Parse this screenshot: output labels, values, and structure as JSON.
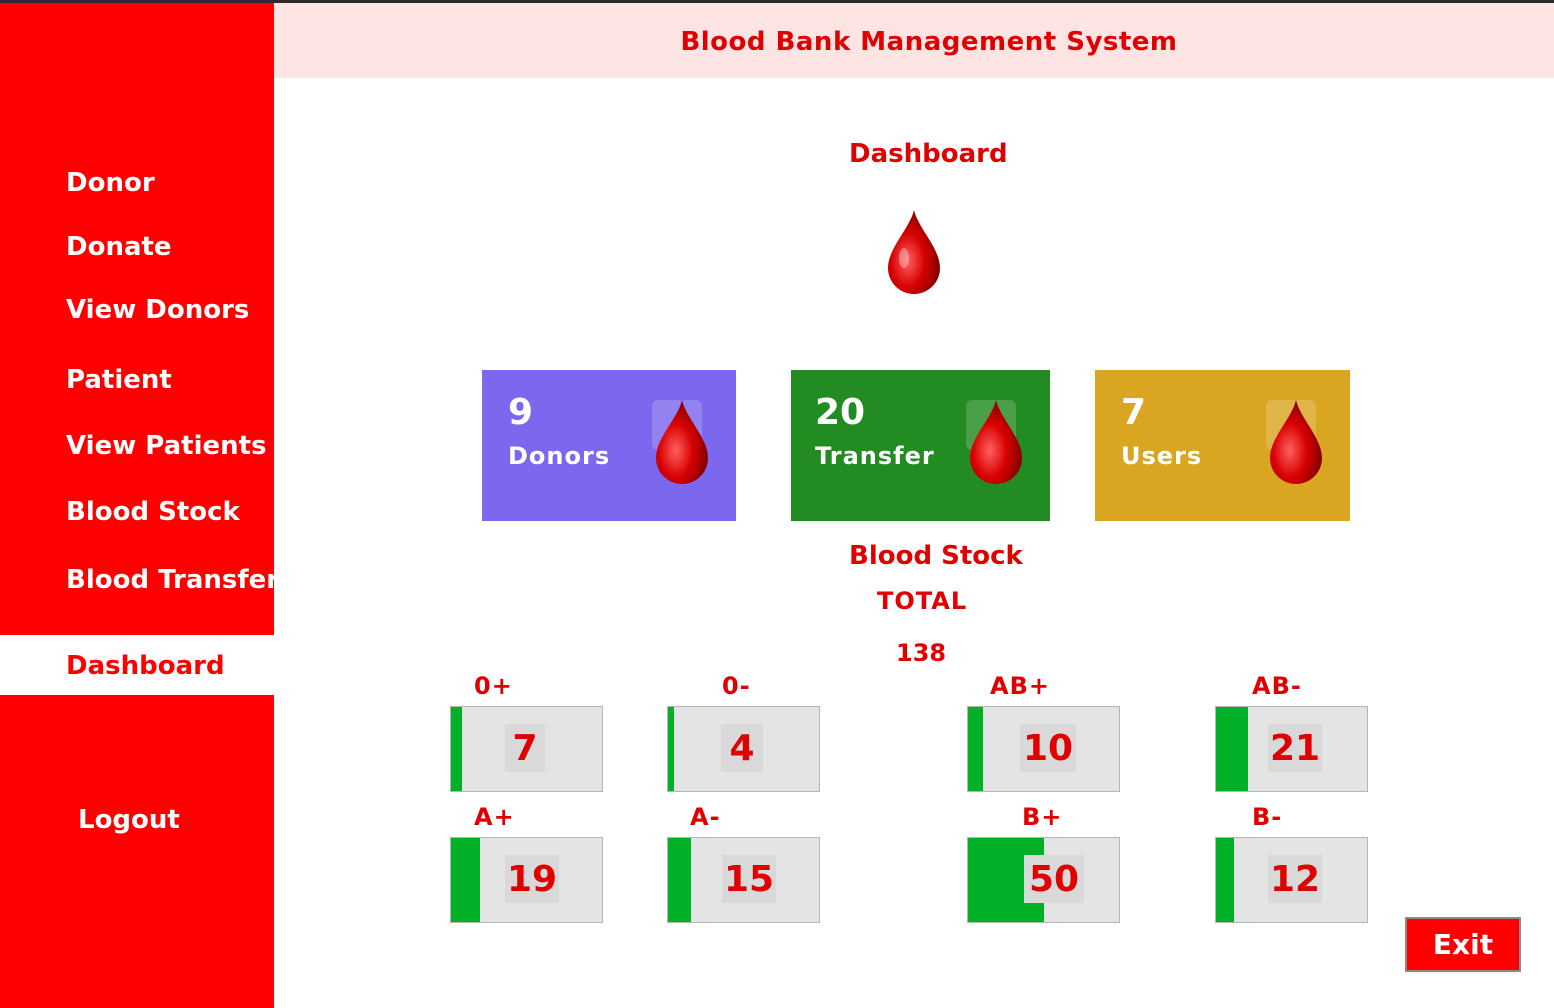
{
  "header": {
    "title": "Blood Bank Management System"
  },
  "sidebar": {
    "items": [
      {
        "label": "Donor"
      },
      {
        "label": "Donate"
      },
      {
        "label": "View Donors"
      },
      {
        "label": "Patient"
      },
      {
        "label": "View Patients"
      },
      {
        "label": "Blood Stock"
      },
      {
        "label": "Blood Transfert"
      }
    ],
    "active_label": "Dashboard",
    "logout_label": "Logout"
  },
  "main": {
    "title": "Dashboard",
    "cards": [
      {
        "value": "9",
        "label": "Donors",
        "color": "#7b68ee"
      },
      {
        "value": "20",
        "label": "Transfer",
        "color": "#228b22"
      },
      {
        "value": "7",
        "label": "Users",
        "color": "#daa520"
      }
    ],
    "stock_title": "Blood Stock",
    "total_label": "TOTAL",
    "total_value": "138",
    "groups": [
      {
        "label": "0+",
        "value": 7
      },
      {
        "label": "0-",
        "value": 4
      },
      {
        "label": "AB+",
        "value": 10
      },
      {
        "label": "AB-",
        "value": 21
      },
      {
        "label": "A+",
        "value": 19
      },
      {
        "label": "A-",
        "value": 15
      },
      {
        "label": "B+",
        "value": 50
      },
      {
        "label": "B-",
        "value": 12
      }
    ],
    "exit_label": "Exit"
  },
  "colors": {
    "accent": "#ff0000",
    "header_bg": "#ffe4e4",
    "bar": "#00b026"
  }
}
